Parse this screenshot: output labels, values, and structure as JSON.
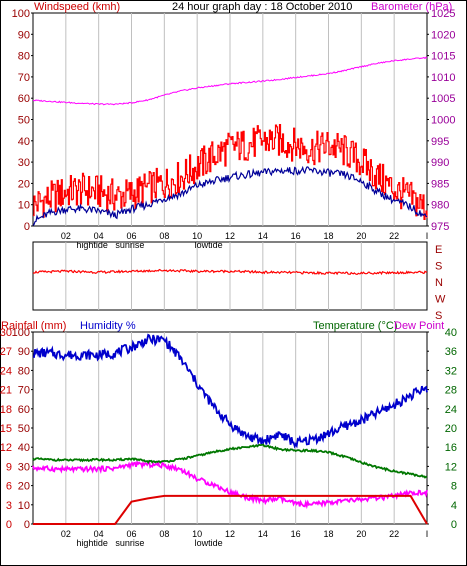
{
  "header": {
    "title": "24 hour graph day : 18 October 2010",
    "left_label": "Windspeed (kmh)",
    "right_label": "Barometer (hPa)"
  },
  "bottom_header": {
    "rain_label": "Rainfall (mm)",
    "humidity_label": "Humidity %",
    "temp_label": "Temperature (°C)",
    "dew_label": "Dew Point"
  },
  "x_ticks": [
    "02",
    "04",
    "06",
    "08",
    "10",
    "12",
    "14",
    "16",
    "18",
    "20",
    "22",
    "I"
  ],
  "tide_labels": {
    "hightide": "hightide",
    "sunrise": "sunrise",
    "lowtide": "lowtide"
  },
  "direction_labels": [
    "E",
    "S",
    "N",
    "W",
    "S"
  ],
  "colors": {
    "wind": "#ff0000",
    "gust_avg": "#000099",
    "baro": "#ff00ff",
    "rain": "#dd0000",
    "humidity": "#0000cc",
    "temp": "#007700",
    "dew": "#ff00ff",
    "grid": "#c0c0c0",
    "left_axis": "#990000",
    "right_axis_top": "#990099",
    "right_axis_bottom": "#006600"
  },
  "chart_data": [
    {
      "type": "line",
      "title": "24 hour graph day : 18 October 2010",
      "ylabel": "Windspeed (kmh)",
      "ylabel_right": "Barometer (hPa)",
      "ylim": [
        0,
        100
      ],
      "ylim_right": [
        975,
        1025
      ],
      "yticks": [
        0,
        10,
        20,
        30,
        40,
        50,
        60,
        70,
        80,
        90,
        100
      ],
      "yticks_right": [
        975,
        980,
        985,
        990,
        995,
        1000,
        1005,
        1010,
        1015,
        1020,
        1025
      ],
      "x_hours": [
        0,
        1,
        2,
        3,
        4,
        5,
        6,
        7,
        8,
        9,
        10,
        11,
        12,
        13,
        14,
        15,
        16,
        17,
        18,
        19,
        20,
        21,
        22,
        23,
        24
      ],
      "series": [
        {
          "name": "Windspeed (kmh)",
          "axis": "left",
          "values": [
            10,
            13,
            16,
            17,
            16,
            14,
            15,
            18,
            20,
            23,
            28,
            33,
            37,
            38,
            40,
            40,
            38,
            36,
            38,
            35,
            30,
            23,
            17,
            13,
            8
          ]
        },
        {
          "name": "",
          "axis": "left",
          "values": [
            2,
            6,
            8,
            8,
            7,
            5,
            8,
            10,
            13,
            15,
            19,
            21,
            23,
            24,
            25,
            26,
            26,
            26,
            25,
            24,
            21,
            16,
            12,
            9,
            4
          ]
        },
        {
          "name": "Barometer (hPa)",
          "axis": "right",
          "values": [
            1004.5,
            1004.3,
            1004.0,
            1003.8,
            1003.6,
            1003.6,
            1003.9,
            1004.6,
            1005.7,
            1006.7,
            1007.4,
            1007.9,
            1008.4,
            1008.7,
            1009.0,
            1009.4,
            1009.9,
            1010.3,
            1010.8,
            1011.5,
            1012.4,
            1013.2,
            1013.8,
            1014.2,
            1014.5
          ]
        }
      ]
    },
    {
      "type": "line",
      "title": "",
      "ylabel": "",
      "ylim": [
        0,
        360
      ],
      "x_hours": [
        0,
        2,
        4,
        6,
        8,
        10,
        12,
        14,
        16,
        18,
        20,
        22,
        24
      ],
      "series": [
        {
          "name": "",
          "values": [
            200,
            205,
            200,
            205,
            210,
            205,
            205,
            200,
            198,
            195,
            195,
            198,
            200
          ]
        }
      ]
    },
    {
      "type": "line",
      "title": "",
      "ylabel": "Rainfall (mm) / Humidity %",
      "ylabel_right": "Temperature (°C) / Dew Point",
      "ylim_rain": [
        0,
        30
      ],
      "ylim_humidity": [
        0,
        100
      ],
      "ylim_right": [
        0,
        40
      ],
      "yticks_rain": [
        0,
        3,
        6,
        9,
        12,
        15,
        18,
        21,
        24,
        27,
        30
      ],
      "yticks_humidity": [
        0,
        10,
        20,
        30,
        40,
        50,
        60,
        70,
        80,
        90,
        100
      ],
      "yticks_right": [
        0,
        4,
        8,
        12,
        16,
        20,
        24,
        28,
        32,
        36,
        40
      ],
      "x_hours": [
        0,
        1,
        2,
        3,
        4,
        5,
        6,
        7,
        8,
        9,
        10,
        11,
        12,
        13,
        14,
        15,
        16,
        17,
        18,
        19,
        20,
        21,
        22,
        23,
        24
      ],
      "series": [
        {
          "name": "Humidity %",
          "axis": "humidity",
          "values": [
            89,
            89,
            88,
            88,
            88,
            89,
            92,
            96,
            96,
            86,
            73,
            61,
            52,
            46,
            43,
            47,
            42,
            44,
            47,
            51,
            54,
            58,
            62,
            67,
            71
          ]
        },
        {
          "name": "Rainfall (mm)",
          "axis": "rain",
          "values": [
            0,
            0,
            0,
            0,
            0,
            0,
            3.5,
            4.0,
            4.4,
            4.4,
            4.4,
            4.4,
            4.4,
            4.4,
            4.4,
            4.4,
            4.4,
            4.4,
            4.4,
            4.4,
            4.4,
            4.4,
            4.4,
            4.4,
            0
          ]
        },
        {
          "name": "Temperature (°C)",
          "axis": "temp",
          "values": [
            13.6,
            13.4,
            13.3,
            13.3,
            13.4,
            13.3,
            13.6,
            13.0,
            13.0,
            13.5,
            14.2,
            15.0,
            15.6,
            16.0,
            16.4,
            15.6,
            15.3,
            15.3,
            14.9,
            14.0,
            12.8,
            11.8,
            11.0,
            10.4,
            9.8
          ]
        },
        {
          "name": "Dew Point",
          "axis": "temp",
          "values": [
            11.7,
            11.5,
            11.4,
            11.4,
            11.5,
            11.6,
            12.4,
            12.4,
            12.2,
            11.4,
            9.4,
            8.2,
            6.6,
            5.6,
            4.8,
            5.3,
            4.2,
            4.0,
            4.5,
            4.8,
            5.1,
            5.4,
            5.8,
            6.4,
            6.6
          ]
        }
      ]
    }
  ]
}
